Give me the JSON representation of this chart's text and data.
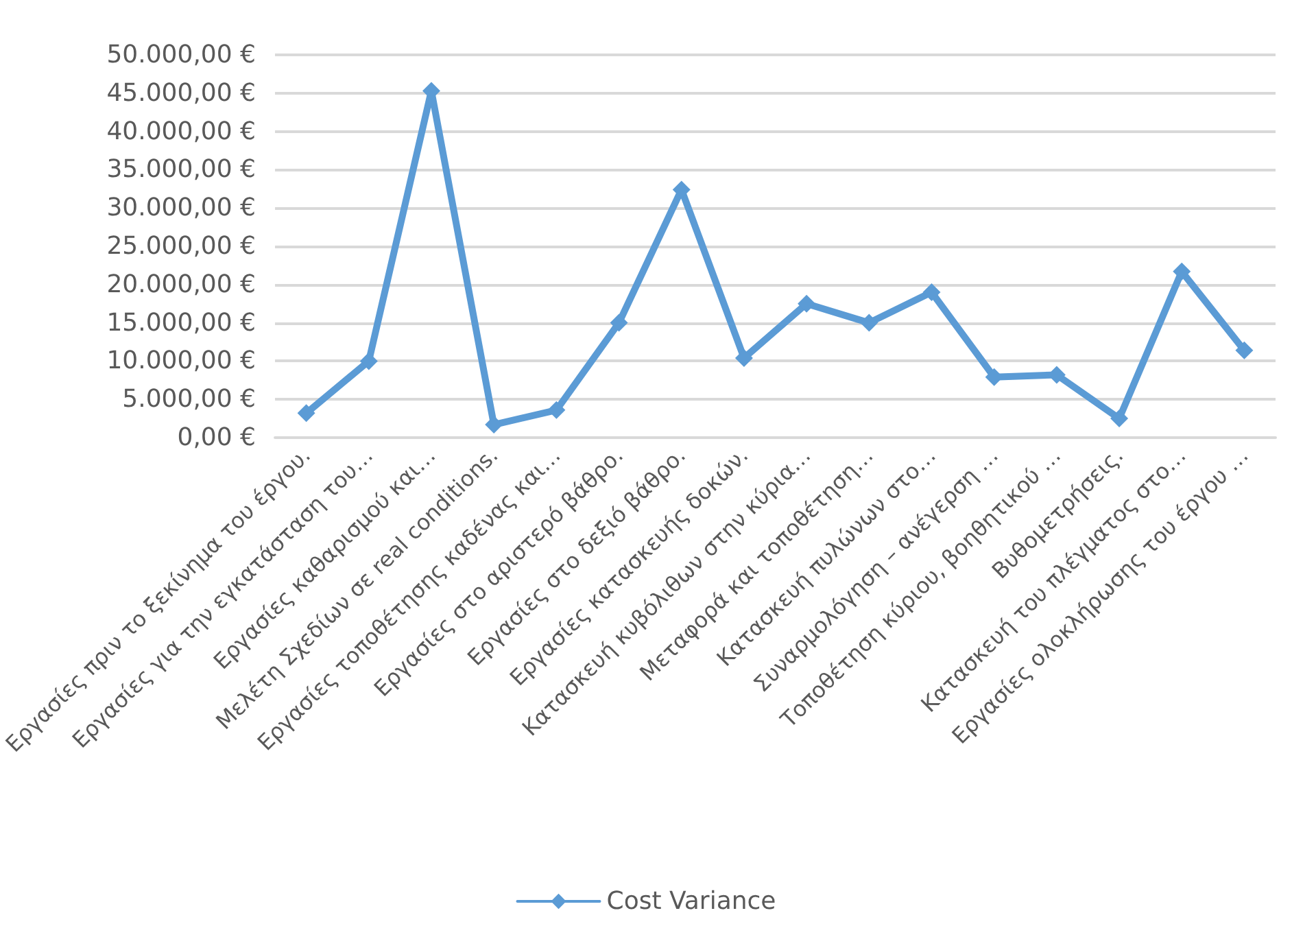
{
  "chart_data": {
    "type": "line",
    "categories": [
      "Εργασίες πριν το ξεκίνημα του έργου.",
      "Εργασίες για την εγκατάσταση του…",
      "Εργασίες καθαρισμού και…",
      "Μελέτη Σχεδίων σε real conditions.",
      "Εργασίες τοποθέτησης καδένας και…",
      "Εργασίες στο αριστερό βάθρο.",
      "Εργασίες στο δεξιό βάθρο.",
      "Εργασίες κατασκευής δοκών.",
      "Κατασκευή κυβόλιθων στην κύρια…",
      "Μεταφορά και τοποθέτηση…",
      "Κατασκευή πυλώνων στο…",
      "Συναρμολόγηση – ανέγερση …",
      "Τοποθέτηση κύριου, βοηθητικού …",
      "Βυθομετρήσεις.",
      "Κατασκευή του πλέγματος στο…",
      "Εργασίες ολοκλήρωσης του έργου …"
    ],
    "series": [
      {
        "name": "Cost Variance",
        "color": "#5b9bd5",
        "values": [
          3200,
          10000,
          45300,
          1700,
          3600,
          15000,
          32400,
          10400,
          17500,
          15000,
          19000,
          7900,
          8200,
          2500,
          21700,
          11400
        ]
      }
    ],
    "ylim": [
      0,
      50000
    ],
    "yticks": [
      {
        "value": 0,
        "label": "0,00 €"
      },
      {
        "value": 5000,
        "label": "5.000,00 €"
      },
      {
        "value": 10000,
        "label": "10.000,00 €"
      },
      {
        "value": 15000,
        "label": "15.000,00 €"
      },
      {
        "value": 20000,
        "label": "20.000,00 €"
      },
      {
        "value": 25000,
        "label": "25.000,00 €"
      },
      {
        "value": 30000,
        "label": "30.000,00 €"
      },
      {
        "value": 35000,
        "label": "35.000,00 €"
      },
      {
        "value": 40000,
        "label": "40.000,00 €"
      },
      {
        "value": 45000,
        "label": "45.000,00 €"
      },
      {
        "value": 50000,
        "label": "50.000,00 €"
      }
    ],
    "grid": "y",
    "legend": "bottom",
    "marker": "diamond",
    "line_style": "solid"
  }
}
